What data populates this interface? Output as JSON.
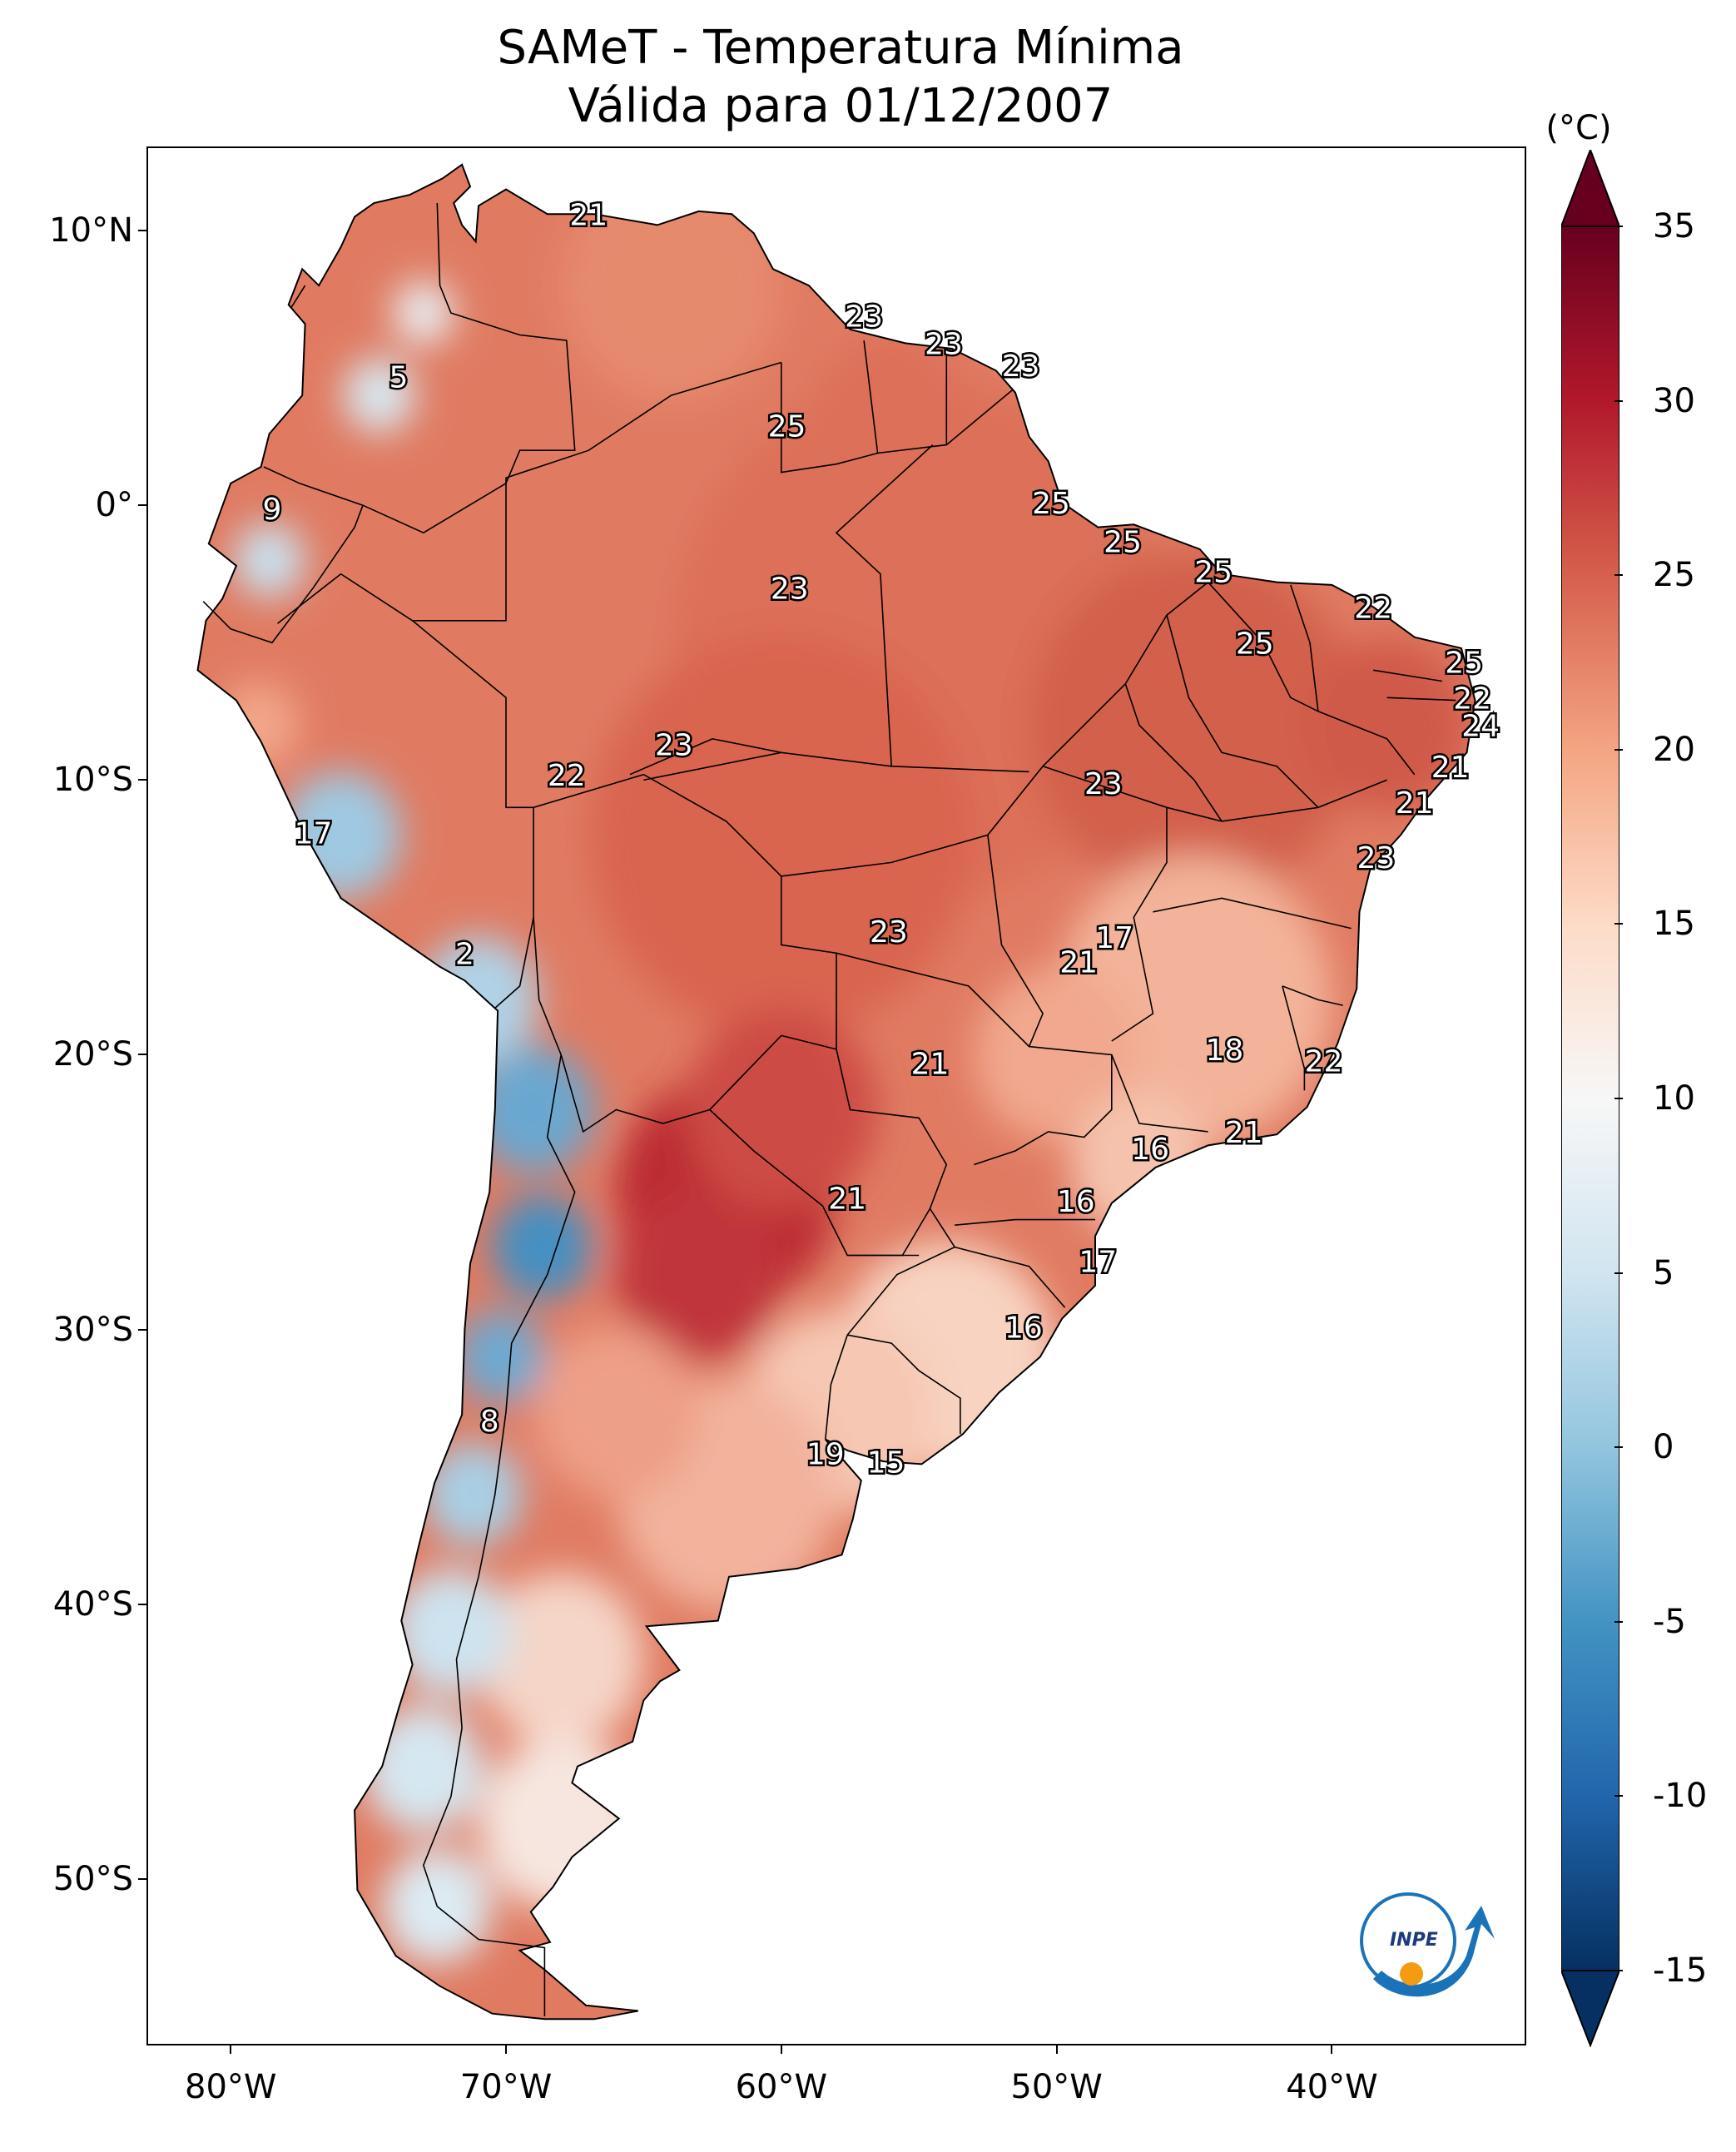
{
  "title": {
    "line1": "SAMeT - Temperatura Mínima",
    "line2": "Válida para 01/12/2007"
  },
  "map_extent": {
    "lon_min": -83,
    "lon_max": -33,
    "lat_min": -56,
    "lat_max": 13
  },
  "axes": {
    "y_ticks": [
      {
        "lat": 10,
        "label": "10°N"
      },
      {
        "lat": 0,
        "label": "0°"
      },
      {
        "lat": -10,
        "label": "10°S"
      },
      {
        "lat": -20,
        "label": "20°S"
      },
      {
        "lat": -30,
        "label": "30°S"
      },
      {
        "lat": -40,
        "label": "40°S"
      },
      {
        "lat": -50,
        "label": "50°S"
      }
    ],
    "x_ticks": [
      {
        "lon": -80,
        "label": "80°W"
      },
      {
        "lon": -70,
        "label": "70°W"
      },
      {
        "lon": -60,
        "label": "60°W"
      },
      {
        "lon": -50,
        "label": "50°W"
      },
      {
        "lon": -40,
        "label": "40°W"
      }
    ]
  },
  "colorbar": {
    "unit": "(°C)",
    "min": -15,
    "max": 35,
    "extend": "both",
    "colormap": "RdBu_r",
    "ticks": [
      {
        "value": 35,
        "label": "35"
      },
      {
        "value": 30,
        "label": "30"
      },
      {
        "value": 25,
        "label": "25"
      },
      {
        "value": 20,
        "label": "20"
      },
      {
        "value": 15,
        "label": "15"
      },
      {
        "value": 10,
        "label": "10"
      },
      {
        "value": 5,
        "label": "5"
      },
      {
        "value": 0,
        "label": "0"
      },
      {
        "value": -5,
        "label": "-5"
      },
      {
        "value": -10,
        "label": "-10"
      },
      {
        "value": -15,
        "label": "-15"
      }
    ],
    "stops": [
      "#053061",
      "#2166ac",
      "#4393c3",
      "#92c5de",
      "#d1e5f0",
      "#f7f7f7",
      "#fddbc7",
      "#f4a582",
      "#d6604d",
      "#b2182b",
      "#67001f"
    ]
  },
  "logo_text": "INPE",
  "city_labels": [
    {
      "lon": -67.0,
      "lat": 10.5,
      "value": "21"
    },
    {
      "lon": -57.0,
      "lat": 6.8,
      "value": "23"
    },
    {
      "lon": -54.1,
      "lat": 5.8,
      "value": "23"
    },
    {
      "lon": -51.3,
      "lat": 5.0,
      "value": "23"
    },
    {
      "lon": -59.8,
      "lat": 2.8,
      "value": "25"
    },
    {
      "lon": -73.9,
      "lat": 4.6,
      "value": "5"
    },
    {
      "lon": -78.5,
      "lat": -0.2,
      "value": "9"
    },
    {
      "lon": -50.2,
      "lat": 0.0,
      "value": "25"
    },
    {
      "lon": -47.6,
      "lat": -1.4,
      "value": "25"
    },
    {
      "lon": -44.3,
      "lat": -2.5,
      "value": "25"
    },
    {
      "lon": -59.7,
      "lat": -3.1,
      "value": "23"
    },
    {
      "lon": -38.5,
      "lat": -3.8,
      "value": "22"
    },
    {
      "lon": -42.8,
      "lat": -5.1,
      "value": "25"
    },
    {
      "lon": -35.2,
      "lat": -5.8,
      "value": "25"
    },
    {
      "lon": -34.9,
      "lat": -7.1,
      "value": "22"
    },
    {
      "lon": -34.6,
      "lat": -8.1,
      "value": "24"
    },
    {
      "lon": -63.9,
      "lat": -8.8,
      "value": "23"
    },
    {
      "lon": -67.8,
      "lat": -9.9,
      "value": "22"
    },
    {
      "lon": -35.7,
      "lat": -9.6,
      "value": "21"
    },
    {
      "lon": -48.3,
      "lat": -10.2,
      "value": "23"
    },
    {
      "lon": -37.0,
      "lat": -10.9,
      "value": "21"
    },
    {
      "lon": -77.0,
      "lat": -12.0,
      "value": "17"
    },
    {
      "lon": -38.4,
      "lat": -12.9,
      "value": "23"
    },
    {
      "lon": -56.1,
      "lat": -15.6,
      "value": "23"
    },
    {
      "lon": -47.9,
      "lat": -15.8,
      "value": "17"
    },
    {
      "lon": -49.2,
      "lat": -16.7,
      "value": "21"
    },
    {
      "lon": -71.5,
      "lat": -16.4,
      "value": "2"
    },
    {
      "lon": -43.9,
      "lat": -19.9,
      "value": "18"
    },
    {
      "lon": -40.3,
      "lat": -20.3,
      "value": "22"
    },
    {
      "lon": -54.6,
      "lat": -20.4,
      "value": "21"
    },
    {
      "lon": -43.2,
      "lat": -22.9,
      "value": "21"
    },
    {
      "lon": -46.6,
      "lat": -23.5,
      "value": "16"
    },
    {
      "lon": -57.6,
      "lat": -25.3,
      "value": "21"
    },
    {
      "lon": -49.3,
      "lat": -25.4,
      "value": "16"
    },
    {
      "lon": -48.5,
      "lat": -27.6,
      "value": "17"
    },
    {
      "lon": -51.2,
      "lat": -30.0,
      "value": "16"
    },
    {
      "lon": -70.6,
      "lat": -33.4,
      "value": "8"
    },
    {
      "lon": -58.4,
      "lat": -34.6,
      "value": "19"
    },
    {
      "lon": -56.2,
      "lat": -34.9,
      "value": "15"
    }
  ]
}
